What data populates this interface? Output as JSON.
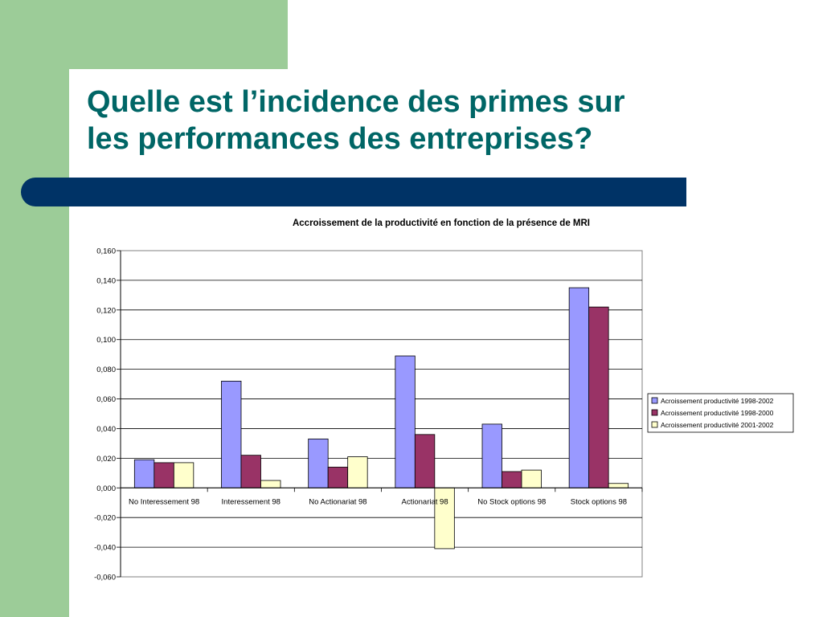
{
  "slide": {
    "title_line1": "Quelle est l’incidence des primes sur",
    "title_line2": "les performances des entreprises?",
    "colors": {
      "title": "#006666",
      "green_band": "#9ccc98",
      "bar": "#003366"
    }
  },
  "chart_data": {
    "type": "bar",
    "title": "Accroissement de la productivité en fonction de la présence de MRI",
    "xlabel": "",
    "ylabel": "",
    "categories": [
      "No Interessement 98",
      "Interessement 98",
      "No Actionariat 98",
      "Actionariat 98",
      "No Stock options 98",
      "Stock options 98"
    ],
    "series": [
      {
        "name": "Acroissement productivité 1998-2002",
        "color": "#9999ff",
        "values": [
          0.019,
          0.072,
          0.033,
          0.089,
          0.043,
          0.135
        ]
      },
      {
        "name": "Acroissement productivité 1998-2000",
        "color": "#993366",
        "values": [
          0.017,
          0.022,
          0.014,
          0.036,
          0.011,
          0.122
        ]
      },
      {
        "name": "Acroissement productivité 2001-2002",
        "color": "#ffffcc",
        "values": [
          0.017,
          0.005,
          0.021,
          -0.041,
          0.012,
          0.003
        ]
      }
    ],
    "ylim": [
      -0.06,
      0.16
    ],
    "yticks": [
      "0,160",
      "0,140",
      "0,120",
      "0,100",
      "0,080",
      "0,060",
      "0,040",
      "0,020",
      "0,000",
      "-0,020",
      "-0,040",
      "-0,060"
    ],
    "grid": true,
    "legend_position": "right"
  }
}
